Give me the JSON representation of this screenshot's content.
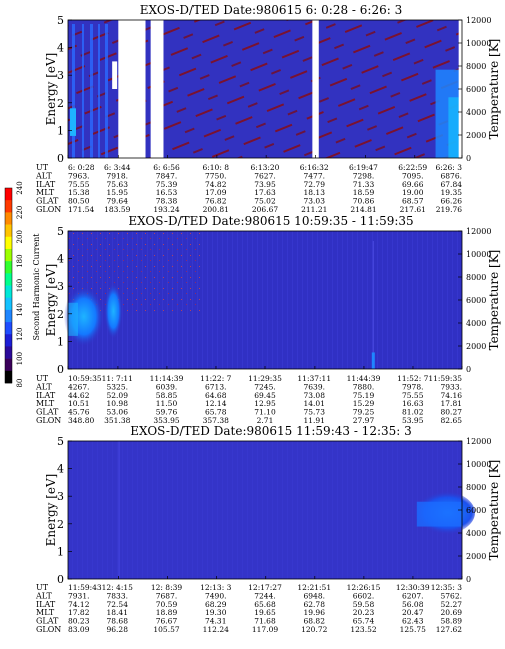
{
  "colorbar": {
    "label": "Second Harmonic Current",
    "ticks": [
      "240",
      "220",
      "200",
      "180",
      "160",
      "140",
      "120",
      "100",
      "80"
    ],
    "colors": [
      "#000000",
      "#3a005a",
      "#2b0a9a",
      "#1c1ed6",
      "#1f4dff",
      "#1f86ff",
      "#14c2ff",
      "#00e8d8",
      "#00ff8c",
      "#32ff2e",
      "#9cff00",
      "#ffff00",
      "#ffc400",
      "#ff8a00",
      "#ff3a00",
      "#ff0000"
    ]
  },
  "labels": {
    "energy_axis": "Energy [eV]",
    "temperature_axis": "Temperature [K]",
    "row_names": [
      "UT",
      "ALT",
      "ILAT",
      "MLT",
      "GLAT",
      "GLON"
    ]
  },
  "chart_data": [
    {
      "type": "heatmap",
      "title": "EXOS-D/TED   Date:980615   6: 0:28 - 6:26: 3",
      "ylabel": "Energy [eV]",
      "ylabel_right": "Temperature [K]",
      "ylim": [
        0,
        5
      ],
      "yticks": [
        "0",
        "1",
        "2",
        "3",
        "4",
        "5"
      ],
      "ylim_right": [
        0,
        12000
      ],
      "yticks_right": [
        "0",
        "2000",
        "4000",
        "6000",
        "8000",
        "10000",
        "12000"
      ],
      "background_color": "#3232c0",
      "gaps_ut": [
        "6:3:44-6:5:30",
        "6:5:50-6:6:40",
        "6:16:20-6:16:45",
        "6:25:50-6:26:3"
      ],
      "features": [
        "dark red streaks across panel",
        "blue vertical bands near 6:0:28-6:2:30",
        "bright blue at 6:24-6:26 below 3 eV"
      ],
      "table": {
        "UT": [
          "6: 0:28",
          "6: 3:44",
          "6: 6:56",
          "6:10: 8",
          "6:13:20",
          "6:16:32",
          "6:19:47",
          "6:22:59",
          "6:26: 3"
        ],
        "ALT": [
          "7963.",
          "7918.",
          "7847.",
          "7750.",
          "7627.",
          "7477.",
          "7298.",
          "7095.",
          "6876."
        ],
        "ILAT": [
          "75.55",
          "75.63",
          "75.39",
          "74.82",
          "73.95",
          "72.79",
          "71.33",
          "69.66",
          "67.84"
        ],
        "MLT": [
          "15.38",
          "15.95",
          "16.53",
          "17.09",
          "17.63",
          "18.13",
          "18.59",
          "19.00",
          "19.35"
        ],
        "GLAT": [
          "80.50",
          "79.64",
          "78.38",
          "76.82",
          "75.02",
          "73.03",
          "70.86",
          "68.57",
          "66.26"
        ],
        "GLON": [
          "171.54",
          "183.59",
          "193.24",
          "200.81",
          "206.67",
          "211.21",
          "214.81",
          "217.61",
          "219.76"
        ]
      }
    },
    {
      "type": "heatmap",
      "title": "EXOS-D/TED   Date:980615   10:59:35 - 11:59:35",
      "ylabel": "Energy [eV]",
      "ylabel_right": "Temperature [K]",
      "ylim": [
        0,
        5
      ],
      "yticks": [
        "0",
        "1",
        "2",
        "3",
        "4",
        "5"
      ],
      "ylim_right": [
        0,
        12000
      ],
      "yticks_right": [
        "0",
        "2000",
        "4000",
        "6000",
        "8000",
        "10000",
        "12000"
      ],
      "background_color": "#3030c4",
      "features": [
        "bright blue blob 10:59:35-11:8 at 1-3 eV",
        "purple speckle 11:4-11:20 at 2-5 eV",
        "thin line near 11:46"
      ],
      "table": {
        "UT": [
          "10:59:35",
          "11: 7:11",
          "11:14:39",
          "11:22: 7",
          "11:29:35",
          "11:37:11",
          "11:44:39",
          "11:52: 7",
          "11:59:35"
        ],
        "ALT": [
          "4267.",
          "5325.",
          "6039.",
          "6713.",
          "7245.",
          "7639.",
          "7880.",
          "7978.",
          "7933."
        ],
        "ILAT": [
          "44.62",
          "52.09",
          "58.85",
          "64.68",
          "69.45",
          "73.08",
          "75.19",
          "75.55",
          "74.16"
        ],
        "MLT": [
          "10.51",
          "10.98",
          "11.50",
          "12.14",
          "12.95",
          "14.01",
          "15.29",
          "16.63",
          "17.81"
        ],
        "GLAT": [
          "45.76",
          "53.06",
          "59.76",
          "65.78",
          "71.10",
          "75.73",
          "79.25",
          "81.02",
          "80.27"
        ],
        "GLON": [
          "348.80",
          "351.38",
          "353.95",
          "357.38",
          "2.71",
          "11.91",
          "27.97",
          "53.95",
          "82.65"
        ]
      }
    },
    {
      "type": "heatmap",
      "title": "EXOS-D/TED   Date:980615   11:59:43 - 12:35: 3",
      "ylabel": "Energy [eV]",
      "ylabel_right": "Temperature [K]",
      "ylim": [
        0,
        5
      ],
      "yticks": [
        "0",
        "1",
        "2",
        "3",
        "4",
        "5"
      ],
      "ylim_right": [
        0,
        12000
      ],
      "yticks_right": [
        "0",
        "2000",
        "4000",
        "6000",
        "8000",
        "10000",
        "12000"
      ],
      "background_color": "#3434c8",
      "features": [
        "bright blue patch 12:31-12:35 at 1.5-3 eV",
        "thin streak near 12:4:15"
      ],
      "table": {
        "UT": [
          "11:59:43",
          "12: 4:15",
          "12: 8:39",
          "12:13: 3",
          "12:17:27",
          "12:21:51",
          "12:26:15",
          "12:30:39",
          "12:35: 3"
        ],
        "ALT": [
          "7931.",
          "7833.",
          "7687.",
          "7490.",
          "7244.",
          "6948.",
          "6602.",
          "6207.",
          "5762."
        ],
        "ILAT": [
          "74.12",
          "72.54",
          "70.59",
          "68.29",
          "65.68",
          "62.78",
          "59.58",
          "56.08",
          "52.27"
        ],
        "MLT": [
          "17.82",
          "18.41",
          "18.89",
          "19.30",
          "19.65",
          "19.96",
          "20.23",
          "20.47",
          "20.69"
        ],
        "GLAT": [
          "80.23",
          "78.68",
          "76.67",
          "74.31",
          "71.68",
          "68.82",
          "65.74",
          "62.43",
          "58.89"
        ],
        "GLON": [
          "83.09",
          "96.28",
          "105.57",
          "112.24",
          "117.09",
          "120.72",
          "123.52",
          "125.75",
          "127.62"
        ]
      }
    }
  ]
}
